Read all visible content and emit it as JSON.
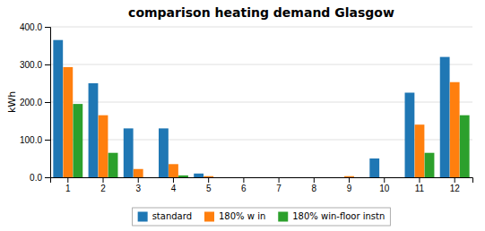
{
  "chart_data": {
    "type": "bar",
    "title": "comparison heating demand Glasgow",
    "ylabel": "kWh",
    "categories": [
      1,
      2,
      3,
      4,
      5,
      6,
      7,
      8,
      9,
      10,
      11,
      12
    ],
    "series": [
      {
        "name": "standard",
        "values": [
          365,
          250,
          130,
          130,
          10,
          0,
          0,
          0,
          0,
          50,
          225,
          320
        ]
      },
      {
        "name": "180% w in",
        "values": [
          293,
          165,
          22,
          35,
          3,
          0,
          0,
          0,
          3,
          0,
          140,
          253
        ]
      },
      {
        "name": "180% win-floor instn",
        "values": [
          195,
          65,
          0,
          5,
          0,
          0,
          0,
          0,
          0,
          0,
          65,
          165
        ]
      }
    ],
    "ylim": [
      0,
      400
    ],
    "yticks": [
      {
        "value": 0,
        "label": "0.0"
      },
      {
        "value": 100,
        "label": "100.0"
      },
      {
        "value": 200,
        "label": "200.0"
      },
      {
        "value": 300,
        "label": "300.0"
      },
      {
        "value": 400,
        "label": "400.0"
      }
    ],
    "grid": true,
    "legend": "bottom"
  }
}
